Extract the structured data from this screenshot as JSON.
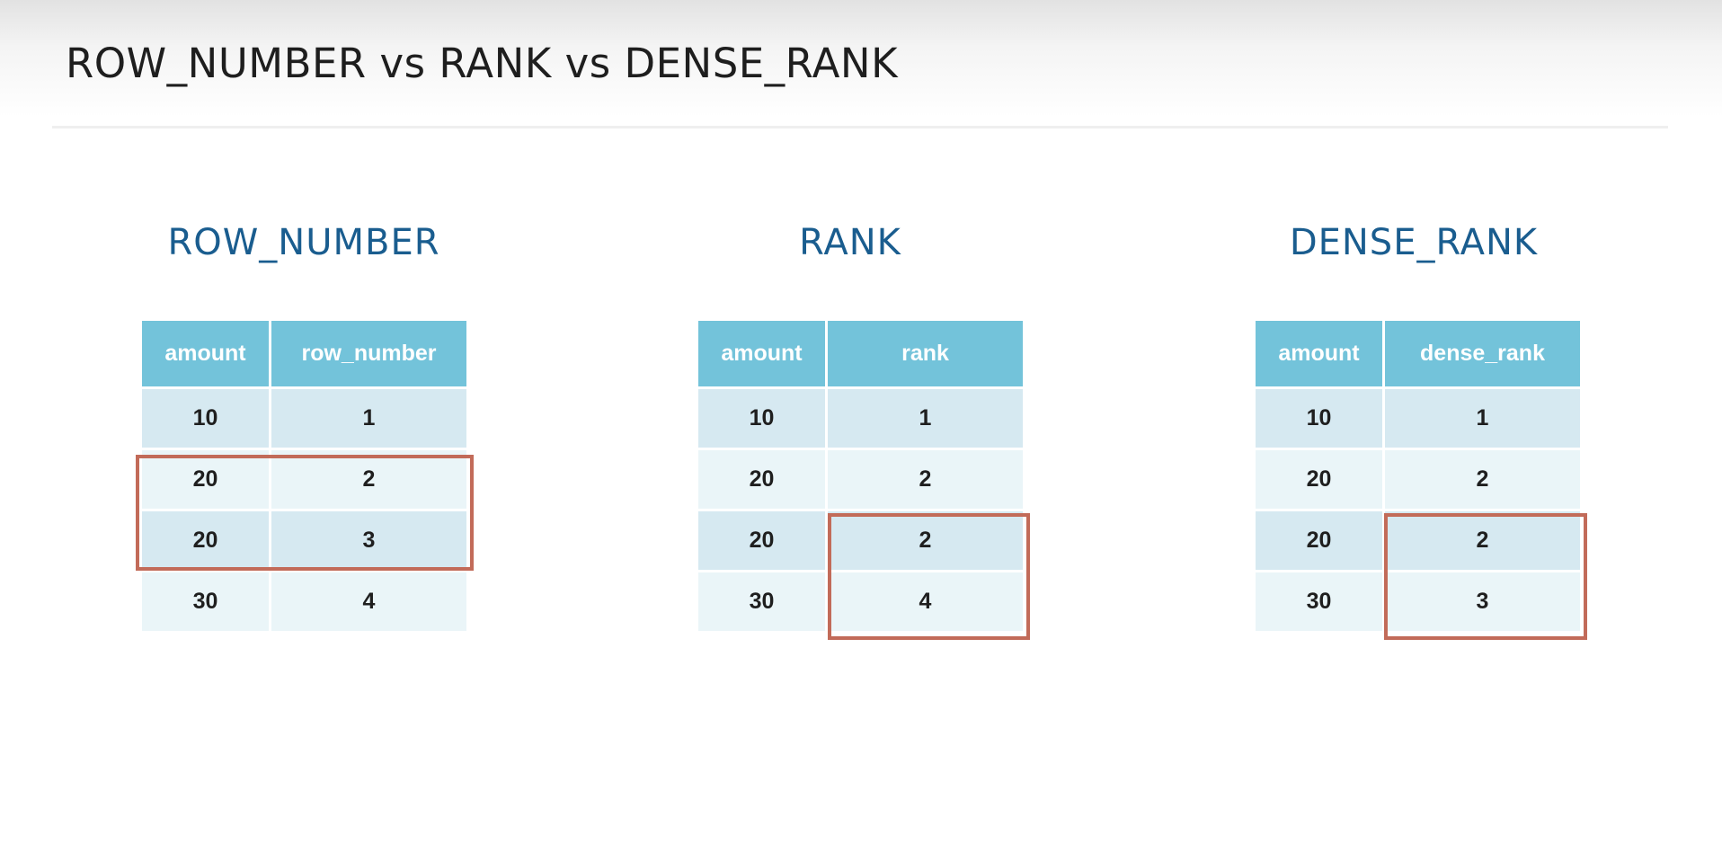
{
  "slide": {
    "title": "ROW_NUMBER vs RANK vs DENSE_RANK"
  },
  "colors": {
    "title_text": "#1e1e1e",
    "panel_title": "#1a5d8f",
    "header_bg": "#73c3da",
    "row_dark": "#d6e9f1",
    "row_light": "#eaf5f8",
    "highlight": "#c26b59"
  },
  "panels": [
    {
      "title": "ROW_NUMBER",
      "headers": [
        "amount",
        "row_number"
      ],
      "rows": [
        [
          "10",
          "1"
        ],
        [
          "20",
          "2"
        ],
        [
          "20",
          "3"
        ],
        [
          "30",
          "4"
        ]
      ],
      "highlight": {
        "rows": [
          1,
          2
        ],
        "columns": [
          0,
          1
        ]
      }
    },
    {
      "title": "RANK",
      "headers": [
        "amount",
        "rank"
      ],
      "rows": [
        [
          "10",
          "1"
        ],
        [
          "20",
          "2"
        ],
        [
          "20",
          "2"
        ],
        [
          "30",
          "4"
        ]
      ],
      "highlight": {
        "rows": [
          2,
          3
        ],
        "columns": [
          1
        ]
      }
    },
    {
      "title": "DENSE_RANK",
      "headers": [
        "amount",
        "dense_rank"
      ],
      "rows": [
        [
          "10",
          "1"
        ],
        [
          "20",
          "2"
        ],
        [
          "20",
          "2"
        ],
        [
          "30",
          "3"
        ]
      ],
      "highlight": {
        "rows": [
          2,
          3
        ],
        "columns": [
          1
        ]
      }
    }
  ]
}
